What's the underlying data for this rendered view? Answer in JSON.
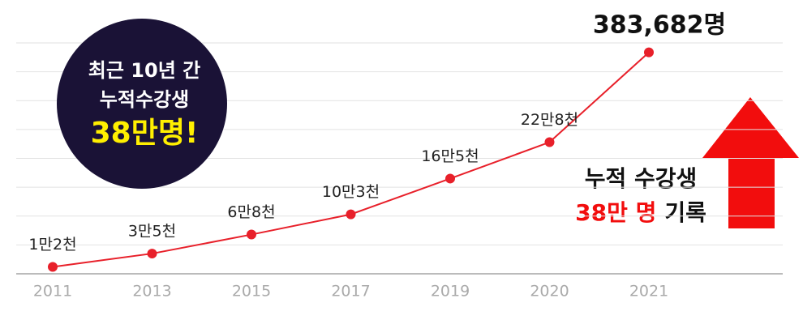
{
  "chart_data": {
    "type": "line",
    "categories": [
      "2011",
      "2013",
      "2015",
      "2017",
      "2019",
      "2020",
      "2021"
    ],
    "values": [
      12000,
      35000,
      68000,
      103000,
      165000,
      228000,
      383682
    ],
    "value_labels": [
      "1만2천",
      "3만5천",
      "6만8천",
      "10만3천",
      "16만5천",
      "22만8천",
      "383,682명"
    ],
    "color": "#e8202a",
    "ylim": [
      0,
      400000
    ],
    "yticks": [
      0,
      50000,
      100000,
      150000,
      200000,
      250000,
      300000,
      350000,
      400000
    ],
    "grid": true,
    "annotations": {
      "circle": [
        "최근 10년 간",
        "누적수강생",
        "38만명!"
      ],
      "note": {
        "line1": "누적 수강생",
        "highlight": "38만 명",
        "rest": "기록"
      }
    }
  }
}
